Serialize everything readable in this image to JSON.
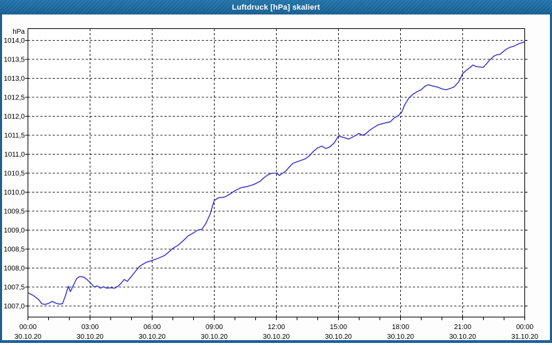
{
  "window": {
    "title": "Luftdruck [hPa] skaliert",
    "colors": {
      "titlebar": "#1d6ba1",
      "titlebar_text": "#ffffff",
      "window_border": "#1e6094",
      "background": "#fdfdfd",
      "plot_background": "#ffffff",
      "axis": "#000000",
      "gridline": "#1a1a1a",
      "line": "#2424cc"
    }
  },
  "chart_data": {
    "type": "line",
    "title": "Luftdruck [hPa] skaliert",
    "xlabel": "",
    "ylabel": "hPa",
    "xlim_hours": [
      0,
      24
    ],
    "ylim": [
      1006.7,
      1014.3
    ],
    "grid": true,
    "grid_style": "dashed",
    "legend": "none",
    "y_axis": {
      "unit": "hPa",
      "tick_step": 0.5,
      "ticks": [
        {
          "value": 1014.0,
          "label": "1014,0"
        },
        {
          "value": 1013.5,
          "label": "1013,5"
        },
        {
          "value": 1013.0,
          "label": "1013,0"
        },
        {
          "value": 1012.5,
          "label": "1012,5"
        },
        {
          "value": 1012.0,
          "label": "1012,0"
        },
        {
          "value": 1011.5,
          "label": "1011,5"
        },
        {
          "value": 1011.0,
          "label": "1011,0"
        },
        {
          "value": 1010.5,
          "label": "1010,5"
        },
        {
          "value": 1010.0,
          "label": "1010,0"
        },
        {
          "value": 1009.5,
          "label": "1009,5"
        },
        {
          "value": 1009.0,
          "label": "1009,0"
        },
        {
          "value": 1008.5,
          "label": "1008,5"
        },
        {
          "value": 1008.0,
          "label": "1008,0"
        },
        {
          "value": 1007.5,
          "label": "1007,5"
        },
        {
          "value": 1007.0,
          "label": "1007,0"
        }
      ]
    },
    "x_axis": {
      "minor_tick_every_hours": 1,
      "ticks": [
        {
          "hour": 0,
          "time": "00:00",
          "date": "30.10.20"
        },
        {
          "hour": 3,
          "time": "03:00",
          "date": "30.10.20"
        },
        {
          "hour": 6,
          "time": "06:00",
          "date": "30.10.20"
        },
        {
          "hour": 9,
          "time": "09:00",
          "date": "30.10.20"
        },
        {
          "hour": 12,
          "time": "12:00",
          "date": "30.10.20"
        },
        {
          "hour": 15,
          "time": "15:00",
          "date": "30.10.20"
        },
        {
          "hour": 18,
          "time": "18:00",
          "date": "30.10.20"
        },
        {
          "hour": 21,
          "time": "21:00",
          "date": "30.10.20"
        },
        {
          "hour": 24,
          "time": "00:00",
          "date": "31.10.20"
        }
      ]
    },
    "series": [
      {
        "name": "Luftdruck",
        "color": "#2424cc",
        "x": [
          0,
          0.25,
          0.5,
          0.67,
          0.83,
          1.0,
          1.17,
          1.33,
          1.5,
          1.67,
          1.83,
          1.95,
          2.05,
          2.2,
          2.35,
          2.5,
          2.7,
          2.85,
          3.0,
          3.2,
          3.35,
          3.5,
          3.65,
          3.8,
          4.0,
          4.2,
          4.35,
          4.5,
          4.65,
          4.8,
          5.0,
          5.2,
          5.4,
          5.7,
          6.0,
          6.3,
          6.6,
          6.8,
          7.0,
          7.25,
          7.5,
          7.75,
          8.0,
          8.2,
          8.4,
          8.6,
          8.8,
          9.0,
          9.2,
          9.5,
          9.7,
          10.0,
          10.3,
          10.6,
          10.9,
          11.2,
          11.4,
          11.6,
          11.8,
          12.0,
          12.15,
          12.3,
          12.45,
          12.6,
          12.8,
          13.0,
          13.2,
          13.4,
          13.6,
          13.8,
          14.0,
          14.2,
          14.4,
          14.6,
          14.8,
          15.0,
          15.25,
          15.5,
          15.75,
          16.0,
          16.15,
          16.3,
          16.5,
          16.7,
          16.9,
          17.1,
          17.3,
          17.5,
          17.7,
          17.9,
          18.05,
          18.2,
          18.4,
          18.6,
          18.8,
          19.0,
          19.2,
          19.35,
          19.6,
          19.8,
          20.0,
          20.2,
          20.4,
          20.6,
          20.8,
          21.0,
          21.15,
          21.3,
          21.5,
          21.65,
          21.8,
          22.0,
          22.15,
          22.3,
          22.5,
          22.65,
          22.8,
          23.0,
          23.15,
          23.3,
          23.45,
          23.6,
          23.75,
          23.9,
          24.0
        ],
        "y": [
          1007.35,
          1007.28,
          1007.18,
          1007.06,
          1007.04,
          1007.07,
          1007.12,
          1007.08,
          1007.05,
          1007.06,
          1007.3,
          1007.52,
          1007.38,
          1007.55,
          1007.72,
          1007.78,
          1007.76,
          1007.7,
          1007.62,
          1007.5,
          1007.53,
          1007.47,
          1007.51,
          1007.47,
          1007.48,
          1007.47,
          1007.52,
          1007.6,
          1007.7,
          1007.65,
          1007.78,
          1007.92,
          1008.05,
          1008.15,
          1008.2,
          1008.26,
          1008.33,
          1008.42,
          1008.52,
          1008.6,
          1008.72,
          1008.85,
          1008.93,
          1009.0,
          1009.02,
          1009.18,
          1009.42,
          1009.78,
          1009.85,
          1009.87,
          1009.93,
          1010.04,
          1010.12,
          1010.15,
          1010.2,
          1010.28,
          1010.38,
          1010.46,
          1010.5,
          1010.5,
          1010.44,
          1010.5,
          1010.55,
          1010.65,
          1010.76,
          1010.8,
          1010.84,
          1010.88,
          1010.96,
          1011.08,
          1011.17,
          1011.21,
          1011.15,
          1011.2,
          1011.3,
          1011.48,
          1011.44,
          1011.4,
          1011.47,
          1011.55,
          1011.5,
          1011.53,
          1011.63,
          1011.7,
          1011.77,
          1011.8,
          1011.83,
          1011.85,
          1011.96,
          1012.02,
          1012.1,
          1012.3,
          1012.48,
          1012.58,
          1012.65,
          1012.7,
          1012.8,
          1012.83,
          1012.79,
          1012.77,
          1012.72,
          1012.7,
          1012.73,
          1012.78,
          1012.9,
          1013.12,
          1013.2,
          1013.26,
          1013.35,
          1013.31,
          1013.3,
          1013.29,
          1013.38,
          1013.48,
          1013.58,
          1013.62,
          1013.63,
          1013.72,
          1013.78,
          1013.82,
          1013.84,
          1013.88,
          1013.92,
          1013.94,
          1013.97
        ]
      }
    ]
  }
}
